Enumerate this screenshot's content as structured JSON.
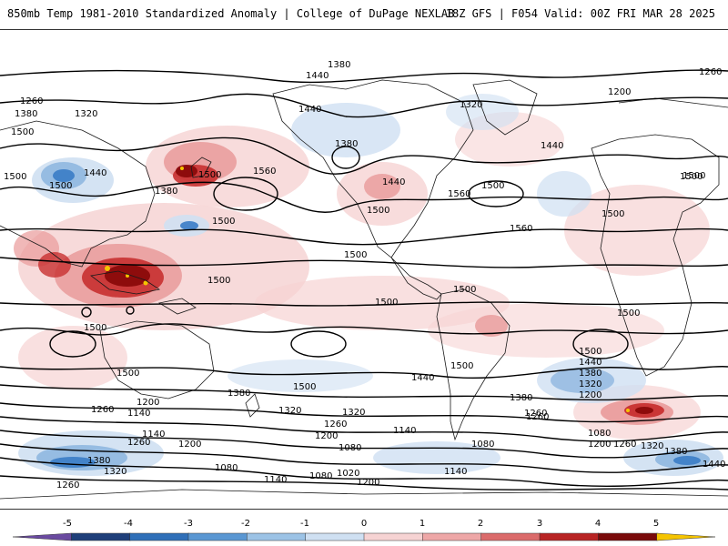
{
  "header": {
    "title_left": "850mb Temp 1981-2010 Standardized Anomaly | College of DuPage NEXLAB",
    "title_right": "18Z GFS | F054 Valid: 00Z FRI MAR 28 2025"
  },
  "map": {
    "contour_labels": [
      "1380",
      "1440",
      "1260",
      "1200",
      "1260",
      "1380",
      "1320",
      "1500",
      "1500",
      "1500",
      "1440",
      "1380",
      "1320",
      "1440",
      "1500",
      "1560",
      "1500",
      "1380",
      "1440",
      "1560",
      "1500",
      "1500",
      "1500",
      "1500",
      "1560",
      "1500",
      "1500",
      "1500",
      "1500",
      "1500",
      "1500",
      "1500",
      "1500",
      "1500",
      "1440",
      "1380",
      "1320",
      "1200",
      "1140",
      "1260",
      "1140",
      "1200",
      "1260",
      "1380",
      "1320",
      "1260",
      "1200",
      "1140",
      "1080",
      "1080",
      "1020",
      "1080",
      "1140",
      "1200",
      "1260",
      "1380",
      "1320",
      "1140",
      "1080",
      "1200",
      "1500",
      "1440",
      "1380",
      "1320",
      "1200",
      "1260",
      "1080",
      "1260",
      "1380",
      "1440",
      "1260",
      "1320",
      "1440",
      "1500"
    ],
    "colors": {
      "land_border": "#1a1a1a",
      "contour": "#000000",
      "warm_light": "#f6d3d3",
      "warm_mid": "#e99a9a",
      "warm_strong": "#c83030",
      "warm_extreme": "#8a0a0a",
      "warm_peak": "#f5c400",
      "cold_light": "#cfe0f2",
      "cold_mid": "#8fb7e0",
      "cold_strong": "#3a7cc7"
    }
  },
  "legend": {
    "tick_labels": [
      "-5",
      "-4",
      "-3",
      "-2",
      "-1",
      "0",
      "1",
      "2",
      "3",
      "4",
      "5"
    ],
    "colors": [
      "#6a4aa0",
      "#1f3f7a",
      "#2f6fb8",
      "#5a97d3",
      "#9cc3e6",
      "#cfe0f2",
      "#f6d3d3",
      "#eea7a7",
      "#db6b6b",
      "#b82424",
      "#7a0a0a",
      "#f5c400"
    ]
  }
}
